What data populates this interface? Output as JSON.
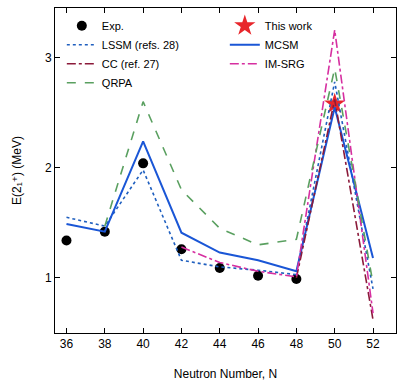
{
  "chart_data": {
    "type": "line",
    "x_label": "Neutron Number, N",
    "y_label": "E(2₁⁺) (MeV)",
    "xlim": [
      35.4,
      53.2
    ],
    "xticks": [
      36,
      38,
      40,
      42,
      44,
      46,
      48,
      50,
      52
    ],
    "ylim": [
      0.5,
      3.45
    ],
    "yticks": [
      1,
      2,
      3
    ],
    "grid": false,
    "legend": "upper left",
    "x": [
      36,
      38,
      40,
      42,
      44,
      46,
      48,
      50,
      52
    ],
    "series": [
      {
        "name": "Exp.",
        "type": "scatter",
        "marker": "circle",
        "color": "#000000",
        "values": [
          1.34,
          1.42,
          2.04,
          1.26,
          1.09,
          1.02,
          0.99,
          null,
          null
        ]
      },
      {
        "name": "This work",
        "type": "scatter",
        "marker": "star",
        "color": "#e8262b",
        "values": [
          null,
          null,
          null,
          null,
          null,
          null,
          null,
          2.58,
          null
        ]
      },
      {
        "name": "LSSM (refs. 28)",
        "type": "line",
        "line_style": "dotted",
        "color": "#1f5fbf",
        "values": [
          1.55,
          1.47,
          1.98,
          1.16,
          1.1,
          1.07,
          1.03,
          2.78,
          0.9
        ]
      },
      {
        "name": "MCSM",
        "type": "line",
        "line_style": "solid",
        "color": "#1a56d6",
        "values": [
          1.49,
          1.42,
          2.24,
          1.41,
          1.23,
          1.16,
          1.06,
          2.55,
          1.18
        ]
      },
      {
        "name": "CC (ref. 27)",
        "type": "line",
        "line_style": "dashdot",
        "color": "#8b1a3a",
        "values": [
          null,
          null,
          null,
          null,
          null,
          null,
          1.0,
          2.62,
          0.62
        ]
      },
      {
        "name": "IM-SRG",
        "type": "line",
        "line_style": "dashdot",
        "color": "#d62fa0",
        "values": [
          null,
          null,
          null,
          1.28,
          1.14,
          1.06,
          1.01,
          3.25,
          0.68
        ]
      },
      {
        "name": "QRPA",
        "type": "line",
        "line_style": "dashed",
        "color": "#5aa060",
        "values": [
          null,
          1.47,
          2.6,
          1.8,
          1.45,
          1.3,
          1.35,
          2.9,
          0.95
        ]
      }
    ]
  }
}
